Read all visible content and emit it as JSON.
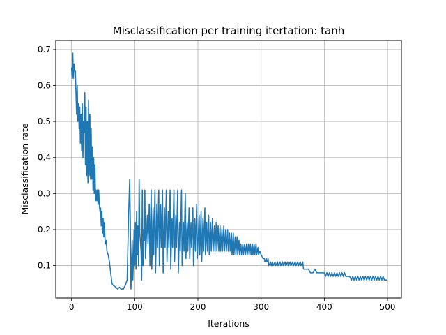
{
  "chart_data": {
    "type": "line",
    "title": "Misclassification per training itertation: tanh",
    "xlabel": "Iterations",
    "ylabel": "Misclassification rate",
    "xlim": [
      -25,
      522
    ],
    "ylim": [
      0.01,
      0.725
    ],
    "xticks": [
      0,
      100,
      200,
      300,
      400,
      500
    ],
    "yticks": [
      0.1,
      0.2,
      0.3,
      0.4,
      0.5,
      0.6,
      0.7
    ],
    "grid": true,
    "legend": "none",
    "series": [
      {
        "color": "#1f77b4",
        "points": [
          [
            0,
            0.65
          ],
          [
            1,
            0.62
          ],
          [
            2,
            0.69
          ],
          [
            3,
            0.62
          ],
          [
            4,
            0.66
          ],
          [
            5,
            0.64
          ],
          [
            6,
            0.64
          ],
          [
            8,
            0.52
          ],
          [
            9,
            0.6
          ],
          [
            10,
            0.5
          ],
          [
            11,
            0.55
          ],
          [
            12,
            0.48
          ],
          [
            13,
            0.54
          ],
          [
            14,
            0.44
          ],
          [
            15,
            0.52
          ],
          [
            16,
            0.42
          ],
          [
            17,
            0.55
          ],
          [
            18,
            0.4
          ],
          [
            19,
            0.5
          ],
          [
            20,
            0.47
          ],
          [
            21,
            0.58
          ],
          [
            22,
            0.38
          ],
          [
            23,
            0.54
          ],
          [
            24,
            0.35
          ],
          [
            25,
            0.5
          ],
          [
            26,
            0.33
          ],
          [
            27,
            0.56
          ],
          [
            28,
            0.35
          ],
          [
            29,
            0.52
          ],
          [
            30,
            0.34
          ],
          [
            31,
            0.48
          ],
          [
            32,
            0.34
          ],
          [
            33,
            0.43
          ],
          [
            34,
            0.31
          ],
          [
            35,
            0.4
          ],
          [
            36,
            0.3
          ],
          [
            37,
            0.38
          ],
          [
            38,
            0.28
          ],
          [
            39,
            0.31
          ],
          [
            40,
            0.28
          ],
          [
            41,
            0.31
          ],
          [
            42,
            0.27
          ],
          [
            43,
            0.31
          ],
          [
            44,
            0.27
          ],
          [
            45,
            0.25
          ],
          [
            46,
            0.26
          ],
          [
            47,
            0.21
          ],
          [
            48,
            0.25
          ],
          [
            49,
            0.19
          ],
          [
            50,
            0.23
          ],
          [
            51,
            0.18
          ],
          [
            52,
            0.22
          ],
          [
            53,
            0.17
          ],
          [
            54,
            0.16
          ],
          [
            55,
            0.17
          ],
          [
            56,
            0.14
          ],
          [
            58,
            0.13
          ],
          [
            60,
            0.11
          ],
          [
            62,
            0.08
          ],
          [
            64,
            0.05
          ],
          [
            66,
            0.045
          ],
          [
            70,
            0.04
          ],
          [
            73,
            0.035
          ],
          [
            76,
            0.04
          ],
          [
            78,
            0.035
          ],
          [
            82,
            0.035
          ],
          [
            85,
            0.045
          ],
          [
            88,
            0.06
          ],
          [
            90,
            0.22
          ],
          [
            92,
            0.34
          ],
          [
            93,
            0.22
          ],
          [
            94,
            0.035
          ],
          [
            95,
            0.1
          ],
          [
            96,
            0.17
          ],
          [
            97,
            0.06
          ],
          [
            98,
            0.12
          ],
          [
            99,
            0.2
          ],
          [
            100,
            0.1
          ],
          [
            101,
            0.22
          ],
          [
            102,
            0.09
          ],
          [
            103,
            0.25
          ],
          [
            104,
            0.13
          ],
          [
            105,
            0.21
          ],
          [
            106,
            0.1
          ],
          [
            107,
            0.34
          ],
          [
            108,
            0.19
          ],
          [
            110,
            0.14
          ],
          [
            111,
            0.06
          ],
          [
            112,
            0.31
          ],
          [
            113,
            0.1
          ],
          [
            114,
            0.2
          ],
          [
            115,
            0.17
          ],
          [
            116,
            0.31
          ],
          [
            117,
            0.12
          ],
          [
            120,
            0.24
          ],
          [
            121,
            0.16
          ],
          [
            123,
            0.27
          ],
          [
            124,
            0.1
          ],
          [
            126,
            0.31
          ],
          [
            127,
            0.09
          ],
          [
            129,
            0.26
          ],
          [
            130,
            0.13
          ],
          [
            132,
            0.31
          ],
          [
            133,
            0.08
          ],
          [
            135,
            0.27
          ],
          [
            136,
            0.15
          ],
          [
            138,
            0.31
          ],
          [
            139,
            0.1
          ],
          [
            141,
            0.27
          ],
          [
            142,
            0.15
          ],
          [
            144,
            0.31
          ],
          [
            145,
            0.08
          ],
          [
            147,
            0.26
          ],
          [
            148,
            0.15
          ],
          [
            150,
            0.31
          ],
          [
            151,
            0.11
          ],
          [
            153,
            0.25
          ],
          [
            154,
            0.15
          ],
          [
            156,
            0.31
          ],
          [
            157,
            0.09
          ],
          [
            159,
            0.23
          ],
          [
            160,
            0.15
          ],
          [
            162,
            0.31
          ],
          [
            163,
            0.11
          ],
          [
            165,
            0.24
          ],
          [
            166,
            0.15
          ],
          [
            168,
            0.31
          ],
          [
            169,
            0.08
          ],
          [
            171,
            0.22
          ],
          [
            172,
            0.14
          ],
          [
            174,
            0.31
          ],
          [
            175,
            0.1
          ],
          [
            177,
            0.22
          ],
          [
            178,
            0.14
          ],
          [
            180,
            0.3
          ],
          [
            181,
            0.12
          ],
          [
            183,
            0.22
          ],
          [
            184,
            0.14
          ],
          [
            186,
            0.26
          ],
          [
            187,
            0.12
          ],
          [
            189,
            0.22
          ],
          [
            190,
            0.15
          ],
          [
            192,
            0.26
          ],
          [
            193,
            0.1
          ],
          [
            195,
            0.23
          ],
          [
            196,
            0.14
          ],
          [
            198,
            0.27
          ],
          [
            199,
            0.12
          ],
          [
            202,
            0.24
          ],
          [
            203,
            0.13
          ],
          [
            205,
            0.25
          ],
          [
            206,
            0.11
          ],
          [
            208,
            0.23
          ],
          [
            209,
            0.14
          ],
          [
            211,
            0.26
          ],
          [
            212,
            0.13
          ],
          [
            214,
            0.22
          ],
          [
            215,
            0.14
          ],
          [
            217,
            0.24
          ],
          [
            218,
            0.13
          ],
          [
            220,
            0.22
          ],
          [
            221,
            0.14
          ],
          [
            223,
            0.23
          ],
          [
            224,
            0.14
          ],
          [
            226,
            0.21
          ],
          [
            227,
            0.14
          ],
          [
            229,
            0.22
          ],
          [
            230,
            0.14
          ],
          [
            232,
            0.21
          ],
          [
            233,
            0.14
          ],
          [
            235,
            0.21
          ],
          [
            236,
            0.14
          ],
          [
            238,
            0.2
          ],
          [
            239,
            0.14
          ],
          [
            241,
            0.21
          ],
          [
            242,
            0.14
          ],
          [
            244,
            0.2
          ],
          [
            245,
            0.14
          ],
          [
            247,
            0.2
          ],
          [
            248,
            0.14
          ],
          [
            250,
            0.19
          ],
          [
            251,
            0.14
          ],
          [
            253,
            0.19
          ],
          [
            254,
            0.13
          ],
          [
            256,
            0.19
          ],
          [
            257,
            0.13
          ],
          [
            259,
            0.18
          ],
          [
            260,
            0.13
          ],
          [
            262,
            0.18
          ],
          [
            263,
            0.13
          ],
          [
            265,
            0.17
          ],
          [
            266,
            0.13
          ],
          [
            268,
            0.16
          ],
          [
            269,
            0.13
          ],
          [
            271,
            0.16
          ],
          [
            272,
            0.13
          ],
          [
            274,
            0.16
          ],
          [
            275,
            0.13
          ],
          [
            277,
            0.16
          ],
          [
            278,
            0.13
          ],
          [
            280,
            0.16
          ],
          [
            281,
            0.13
          ],
          [
            283,
            0.16
          ],
          [
            284,
            0.13
          ],
          [
            286,
            0.16
          ],
          [
            287,
            0.13
          ],
          [
            289,
            0.16
          ],
          [
            290,
            0.13
          ],
          [
            292,
            0.16
          ],
          [
            293,
            0.13
          ],
          [
            295,
            0.15
          ],
          [
            296,
            0.13
          ],
          [
            298,
            0.14
          ],
          [
            300,
            0.13
          ],
          [
            303,
            0.12
          ],
          [
            305,
            0.12
          ],
          [
            306,
            0.11
          ],
          [
            308,
            0.12
          ],
          [
            309,
            0.11
          ],
          [
            311,
            0.12
          ],
          [
            312,
            0.1
          ],
          [
            315,
            0.11
          ],
          [
            316,
            0.1
          ],
          [
            318,
            0.11
          ],
          [
            319,
            0.1
          ],
          [
            322,
            0.11
          ],
          [
            323,
            0.1
          ],
          [
            326,
            0.11
          ],
          [
            327,
            0.1
          ],
          [
            330,
            0.11
          ],
          [
            331,
            0.1
          ],
          [
            334,
            0.11
          ],
          [
            335,
            0.1
          ],
          [
            338,
            0.11
          ],
          [
            339,
            0.1
          ],
          [
            342,
            0.11
          ],
          [
            343,
            0.1
          ],
          [
            346,
            0.11
          ],
          [
            347,
            0.1
          ],
          [
            350,
            0.11
          ],
          [
            351,
            0.1
          ],
          [
            354,
            0.11
          ],
          [
            355,
            0.1
          ],
          [
            358,
            0.11
          ],
          [
            359,
            0.1
          ],
          [
            362,
            0.11
          ],
          [
            363,
            0.1
          ],
          [
            366,
            0.11
          ],
          [
            367,
            0.09
          ],
          [
            370,
            0.09
          ],
          [
            375,
            0.09
          ],
          [
            378,
            0.08
          ],
          [
            382,
            0.08
          ],
          [
            385,
            0.09
          ],
          [
            388,
            0.08
          ],
          [
            392,
            0.08
          ],
          [
            396,
            0.08
          ],
          [
            400,
            0.08
          ],
          [
            402,
            0.07
          ],
          [
            404,
            0.08
          ],
          [
            406,
            0.07
          ],
          [
            408,
            0.08
          ],
          [
            410,
            0.07
          ],
          [
            412,
            0.08
          ],
          [
            414,
            0.07
          ],
          [
            416,
            0.08
          ],
          [
            418,
            0.07
          ],
          [
            420,
            0.08
          ],
          [
            422,
            0.07
          ],
          [
            424,
            0.08
          ],
          [
            426,
            0.07
          ],
          [
            428,
            0.08
          ],
          [
            430,
            0.07
          ],
          [
            432,
            0.08
          ],
          [
            434,
            0.07
          ],
          [
            436,
            0.07
          ],
          [
            440,
            0.07
          ],
          [
            443,
            0.06
          ],
          [
            445,
            0.07
          ],
          [
            447,
            0.06
          ],
          [
            449,
            0.07
          ],
          [
            451,
            0.06
          ],
          [
            453,
            0.07
          ],
          [
            455,
            0.06
          ],
          [
            457,
            0.07
          ],
          [
            459,
            0.06
          ],
          [
            461,
            0.07
          ],
          [
            463,
            0.06
          ],
          [
            465,
            0.07
          ],
          [
            467,
            0.06
          ],
          [
            469,
            0.07
          ],
          [
            471,
            0.06
          ],
          [
            473,
            0.07
          ],
          [
            475,
            0.06
          ],
          [
            477,
            0.07
          ],
          [
            479,
            0.06
          ],
          [
            481,
            0.07
          ],
          [
            483,
            0.06
          ],
          [
            485,
            0.07
          ],
          [
            487,
            0.06
          ],
          [
            489,
            0.07
          ],
          [
            491,
            0.06
          ],
          [
            493,
            0.07
          ],
          [
            495,
            0.06
          ],
          [
            497,
            0.06
          ],
          [
            500,
            0.06
          ]
        ]
      }
    ]
  }
}
